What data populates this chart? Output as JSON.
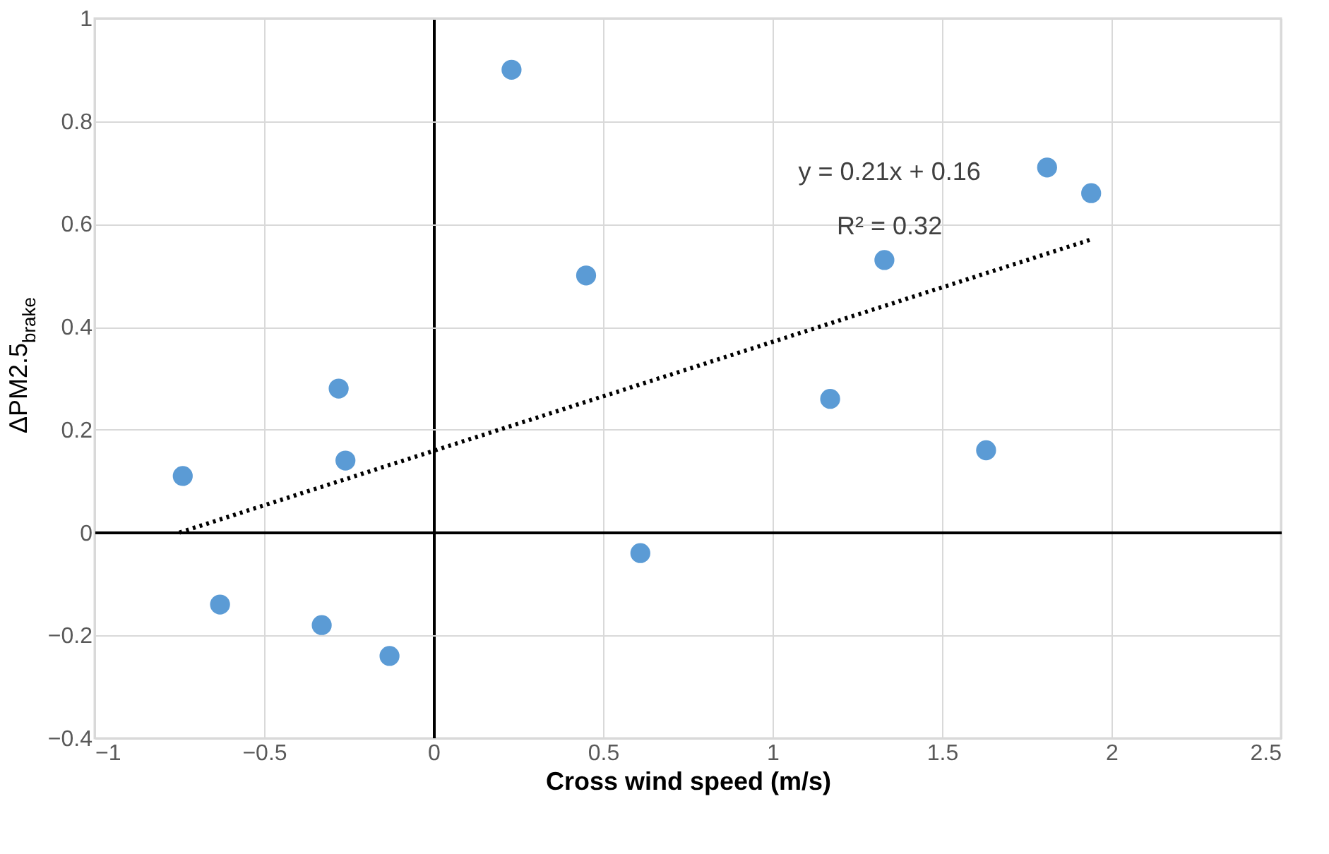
{
  "chart_data": {
    "type": "scatter",
    "xlabel": "Cross wind speed (m/s)",
    "ylabel": "ΔPM2.5$_{brake}$",
    "xlim": [
      -1,
      2.5
    ],
    "xticks": [
      -1,
      -0.5,
      0,
      0.5,
      1,
      1.5,
      2,
      2.5
    ],
    "ylim": [
      -0.4,
      1
    ],
    "yticks": [
      -0.4,
      -0.2,
      0,
      0.2,
      0.4,
      0.6,
      0.8,
      1
    ],
    "grid": true,
    "marker": "circle",
    "series": [
      {
        "type": "scatter",
        "color": "#5b9bd5",
        "x": [
          -0.74,
          -0.63,
          -0.33,
          -0.28,
          -0.26,
          -0.13,
          0.23,
          0.45,
          0.61,
          1.17,
          1.33,
          1.63,
          1.81,
          1.94
        ],
        "values": [
          0.11,
          -0.14,
          -0.18,
          0.28,
          0.14,
          -0.24,
          0.9,
          0.5,
          -0.04,
          0.26,
          0.53,
          0.16,
          0.71,
          0.66
        ]
      },
      {
        "type": "line",
        "color": "#000000",
        "line_style": "dotted",
        "marker": "none",
        "x": [
          -0.75,
          1.94
        ],
        "values": [
          0.0,
          0.57
        ]
      }
    ],
    "annotations": [
      "y = 0.21x + 0.16",
      "R² = 0.32"
    ]
  }
}
